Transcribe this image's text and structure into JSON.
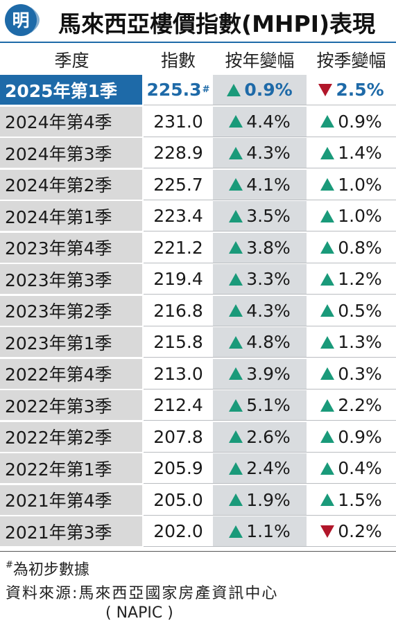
{
  "header": {
    "logo_char": "明",
    "title": "馬來西亞樓價指數(MHPI)表現"
  },
  "colors": {
    "accent": "#1e6aa8",
    "up": "#1a9a7a",
    "down": "#b1162a",
    "band": "#d9d9d9"
  },
  "chart_data": {
    "type": "table",
    "columns": [
      "季度",
      "指數",
      "按年變幅",
      "按季變幅"
    ],
    "rows": [
      {
        "quarter": "2025年第1季",
        "index": "225.3",
        "index_mark": "#",
        "yoy_dir": "up",
        "yoy": "0.9%",
        "qoq_dir": "down",
        "qoq": "2.5%",
        "highlight": true
      },
      {
        "quarter": "2024年第4季",
        "index": "231.0",
        "index_mark": "",
        "yoy_dir": "up",
        "yoy": "4.4%",
        "qoq_dir": "up",
        "qoq": "0.9%",
        "highlight": false
      },
      {
        "quarter": "2024年第3季",
        "index": "228.9",
        "index_mark": "",
        "yoy_dir": "up",
        "yoy": "4.3%",
        "qoq_dir": "up",
        "qoq": "1.4%",
        "highlight": false
      },
      {
        "quarter": "2024年第2季",
        "index": "225.7",
        "index_mark": "",
        "yoy_dir": "up",
        "yoy": "4.1%",
        "qoq_dir": "up",
        "qoq": "1.0%",
        "highlight": false
      },
      {
        "quarter": "2024年第1季",
        "index": "223.4",
        "index_mark": "",
        "yoy_dir": "up",
        "yoy": "3.5%",
        "qoq_dir": "up",
        "qoq": "1.0%",
        "highlight": false
      },
      {
        "quarter": "2023年第4季",
        "index": "221.2",
        "index_mark": "",
        "yoy_dir": "up",
        "yoy": "3.8%",
        "qoq_dir": "up",
        "qoq": "0.8%",
        "highlight": false
      },
      {
        "quarter": "2023年第3季",
        "index": "219.4",
        "index_mark": "",
        "yoy_dir": "up",
        "yoy": "3.3%",
        "qoq_dir": "up",
        "qoq": "1.2%",
        "highlight": false
      },
      {
        "quarter": "2023年第2季",
        "index": "216.8",
        "index_mark": "",
        "yoy_dir": "up",
        "yoy": "4.3%",
        "qoq_dir": "up",
        "qoq": "0.5%",
        "highlight": false
      },
      {
        "quarter": "2023年第1季",
        "index": "215.8",
        "index_mark": "",
        "yoy_dir": "up",
        "yoy": "4.8%",
        "qoq_dir": "up",
        "qoq": "1.3%",
        "highlight": false
      },
      {
        "quarter": "2022年第4季",
        "index": "213.0",
        "index_mark": "",
        "yoy_dir": "up",
        "yoy": "3.9%",
        "qoq_dir": "up",
        "qoq": "0.3%",
        "highlight": false
      },
      {
        "quarter": "2022年第3季",
        "index": "212.4",
        "index_mark": "",
        "yoy_dir": "up",
        "yoy": "5.1%",
        "qoq_dir": "up",
        "qoq": "2.2%",
        "highlight": false
      },
      {
        "quarter": "2022年第2季",
        "index": "207.8",
        "index_mark": "",
        "yoy_dir": "up",
        "yoy": "2.6%",
        "qoq_dir": "up",
        "qoq": "0.9%",
        "highlight": false
      },
      {
        "quarter": "2022年第1季",
        "index": "205.9",
        "index_mark": "",
        "yoy_dir": "up",
        "yoy": "2.4%",
        "qoq_dir": "up",
        "qoq": "0.4%",
        "highlight": false
      },
      {
        "quarter": "2021年第4季",
        "index": "205.0",
        "index_mark": "",
        "yoy_dir": "up",
        "yoy": "1.9%",
        "qoq_dir": "up",
        "qoq": "1.5%",
        "highlight": false
      },
      {
        "quarter": "2021年第3季",
        "index": "202.0",
        "index_mark": "",
        "yoy_dir": "up",
        "yoy": "1.1%",
        "qoq_dir": "down",
        "qoq": "0.2%",
        "highlight": false
      }
    ]
  },
  "footer": {
    "note_mark": "#",
    "note_text": "為初步數據",
    "source_line1": "資料來源:馬來西亞國家房產資訊中心",
    "source_line2": "( NAPIC )"
  }
}
